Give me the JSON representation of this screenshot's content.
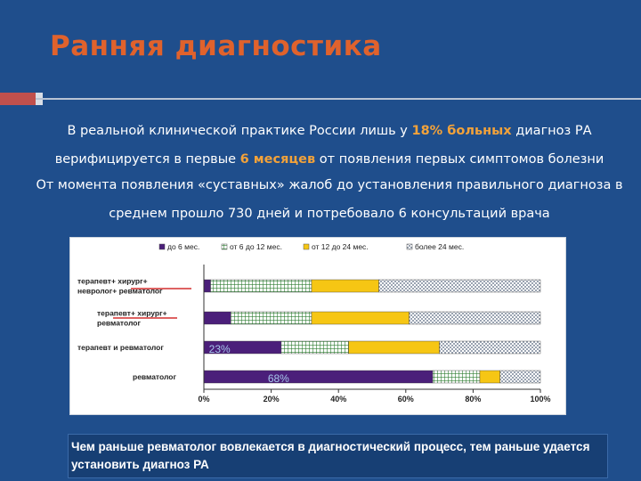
{
  "slide": {
    "title": "Ранняя диагностика",
    "para1": {
      "part1": "В реальной клинической практике России лишь у ",
      "hl1": "18% больных",
      "part2": " диагноз РА верифицируется в первые ",
      "hl2": "6 месяцев",
      "part3": " от появления первых симптомов болезни"
    },
    "para2": "От момента появления «суставных» жалоб до установления правильного диагноза в среднем прошло 730 дней и потребовало 6 консультаций врача",
    "footer": "Чем раньше ревматолог вовлекается в диагностический процесс, тем раньше удается установить диагноз РА",
    "colors": {
      "title": "#e0622c",
      "highlight": "#f2a23a",
      "background": "#1f4e8c"
    }
  },
  "chart_data": {
    "type": "bar",
    "orientation": "horizontal",
    "stacked": "percent",
    "categories": [
      "терапевт+ хирург+ невролог+ ревматолог",
      "терапевт+ хирург+ ревматолог",
      "терапевт и ревматолог",
      "ревматолог"
    ],
    "series": [
      {
        "name": "до 6 мес.",
        "color": "#4b1f7a",
        "pattern": "solid",
        "values": [
          2,
          8,
          23,
          68
        ]
      },
      {
        "name": "от 6 до 12 мес.",
        "color": "#2e7d32",
        "pattern": "grid",
        "values": [
          30,
          24,
          20,
          14
        ]
      },
      {
        "name": "от 12 до 24 мес.",
        "color": "#f6c614",
        "pattern": "solid",
        "values": [
          20,
          29,
          27,
          6
        ]
      },
      {
        "name": "более 24 мес.",
        "color": "#7a8aa0",
        "pattern": "dots",
        "values": [
          48,
          39,
          30,
          12
        ]
      }
    ],
    "data_labels": [
      {
        "category": "терапевт и ревматолог",
        "text": "23%"
      },
      {
        "category": "ревматолог",
        "text": "68%"
      }
    ],
    "xticks": [
      "0%",
      "20%",
      "40%",
      "60%",
      "80%",
      "100%"
    ],
    "xlim": [
      0,
      100
    ],
    "legend": "top",
    "grid": false
  }
}
